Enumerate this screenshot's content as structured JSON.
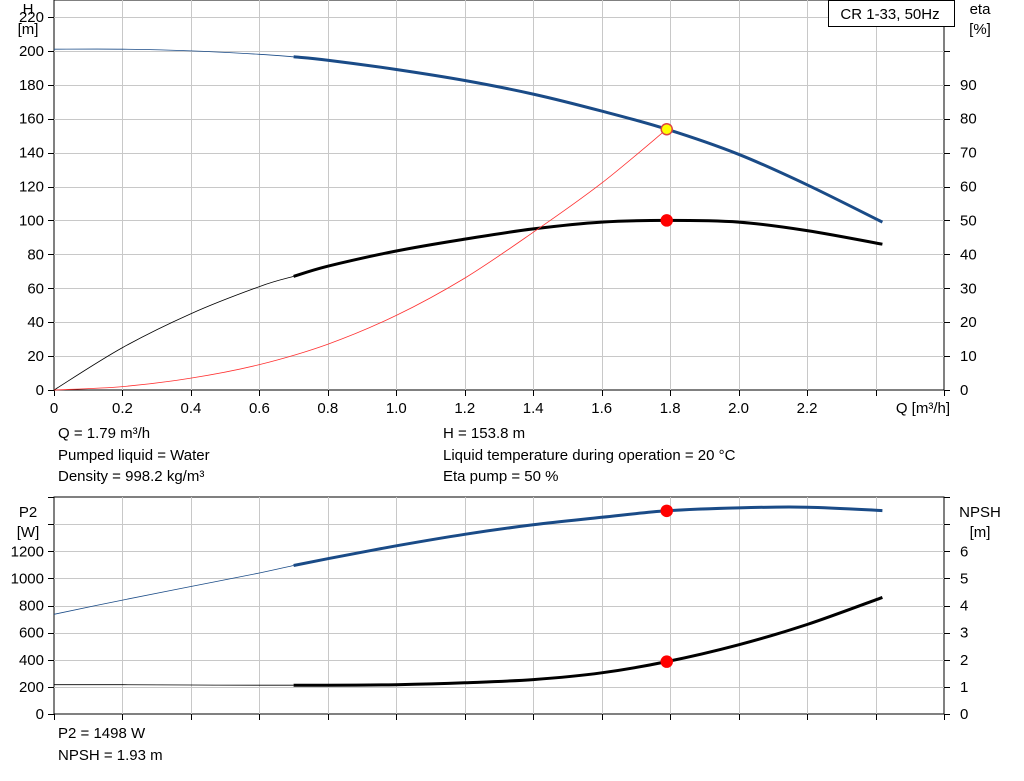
{
  "chart_data": [
    {
      "type": "line",
      "title": "CR 1-33, 50Hz",
      "xlabel": "Q [m³/h]",
      "ylabel": "H\n[m]",
      "ylabel_right": "eta\n[%]",
      "xlim": [
        0,
        2.6
      ],
      "ylim": [
        0,
        230
      ],
      "ylim_right": [
        0,
        115
      ],
      "x_ticks": [
        "0",
        "0.2",
        "0.4",
        "0.6",
        "0.8",
        "1.0",
        "1.2",
        "1.4",
        "1.6",
        "1.8",
        "2.0",
        "2.2"
      ],
      "y_ticks": [
        "0",
        "20",
        "40",
        "60",
        "80",
        "100",
        "120",
        "140",
        "160",
        "180",
        "200",
        "220"
      ],
      "y_ticks_right": [
        "0",
        "10",
        "20",
        "30",
        "40",
        "50",
        "60",
        "70",
        "80",
        "90"
      ],
      "grid": true,
      "series": [
        {
          "axis": "left",
          "color": "#1a4b87",
          "x": [
            0,
            0.2,
            0.4,
            0.6,
            0.7,
            0.8,
            1.0,
            1.2,
            1.4,
            1.6,
            1.79,
            2.0,
            2.2,
            2.42
          ],
          "y": [
            201,
            201,
            200,
            198,
            196.5,
            194.5,
            189,
            182.5,
            174.5,
            164.5,
            153.8,
            139,
            121,
            99
          ],
          "operating_range_from": 0.7
        },
        {
          "axis": "right",
          "color": "#000000",
          "x": [
            0,
            0.2,
            0.4,
            0.6,
            0.7,
            0.8,
            1.0,
            1.2,
            1.4,
            1.6,
            1.79,
            2.0,
            2.2,
            2.42
          ],
          "y": [
            0,
            12.5,
            22.5,
            30.5,
            33.5,
            36.5,
            41,
            44.5,
            47.5,
            49.5,
            50,
            49.5,
            47,
            43
          ],
          "operating_range_from": 0.7
        },
        {
          "axis": "left",
          "color": "#ff3030",
          "x": [
            0,
            0.2,
            0.4,
            0.6,
            0.8,
            1.0,
            1.2,
            1.4,
            1.6,
            1.79
          ],
          "y": [
            0,
            2,
            7,
            15,
            27,
            44,
            66,
            93,
            122,
            153.8
          ]
        }
      ],
      "markers": [
        {
          "axis": "left",
          "x": 1.79,
          "y": 153.8,
          "fill": "#ffff00",
          "stroke": "#d44"
        },
        {
          "axis": "right",
          "x": 1.79,
          "y": 50,
          "fill": "#ff0000",
          "stroke": "#ff0000"
        }
      ]
    },
    {
      "type": "line",
      "xlabel": "",
      "ylabel": "P2\n[W]",
      "ylabel_right": "NPSH\n[m]",
      "xlim": [
        0,
        2.6
      ],
      "ylim": [
        0,
        1600
      ],
      "ylim_right": [
        0,
        8
      ],
      "y_ticks": [
        "0",
        "200",
        "400",
        "600",
        "800",
        "1000",
        "1200"
      ],
      "y_ticks_right": [
        "0",
        "1",
        "2",
        "3",
        "4",
        "5",
        "6"
      ],
      "grid": true,
      "series": [
        {
          "axis": "left",
          "color": "#1a4b87",
          "x": [
            0,
            0.2,
            0.4,
            0.6,
            0.7,
            0.8,
            1.0,
            1.2,
            1.4,
            1.6,
            1.79,
            2.0,
            2.2,
            2.42
          ],
          "y": [
            735,
            840,
            940,
            1040,
            1095,
            1145,
            1240,
            1325,
            1395,
            1450,
            1498,
            1520,
            1525,
            1500
          ],
          "operating_range_from": 0.7
        },
        {
          "axis": "right",
          "color": "#000000",
          "x": [
            0,
            0.2,
            0.4,
            0.6,
            0.7,
            0.8,
            1.0,
            1.2,
            1.4,
            1.6,
            1.79,
            2.0,
            2.2,
            2.42
          ],
          "y": [
            1.08,
            1.08,
            1.07,
            1.06,
            1.06,
            1.06,
            1.08,
            1.15,
            1.27,
            1.52,
            1.93,
            2.55,
            3.3,
            4.3
          ],
          "operating_range_from": 0.7
        }
      ],
      "markers": [
        {
          "axis": "left",
          "x": 1.79,
          "y": 1498,
          "fill": "#ff0000",
          "stroke": "#ff0000"
        },
        {
          "axis": "right",
          "x": 1.79,
          "y": 1.93,
          "fill": "#ff0000",
          "stroke": "#ff0000"
        }
      ]
    }
  ],
  "info": {
    "q": "Q = 1.79 m³/h",
    "liquid": "Pumped liquid = Water",
    "density": "Density = 998.2 kg/m³",
    "h": "H = 153.8 m",
    "temp": "Liquid temperature during operation = 20 °C",
    "eta": "Eta pump = 50 %",
    "p2": "P2 = 1498 W",
    "npsh": "NPSH = 1.93 m"
  }
}
